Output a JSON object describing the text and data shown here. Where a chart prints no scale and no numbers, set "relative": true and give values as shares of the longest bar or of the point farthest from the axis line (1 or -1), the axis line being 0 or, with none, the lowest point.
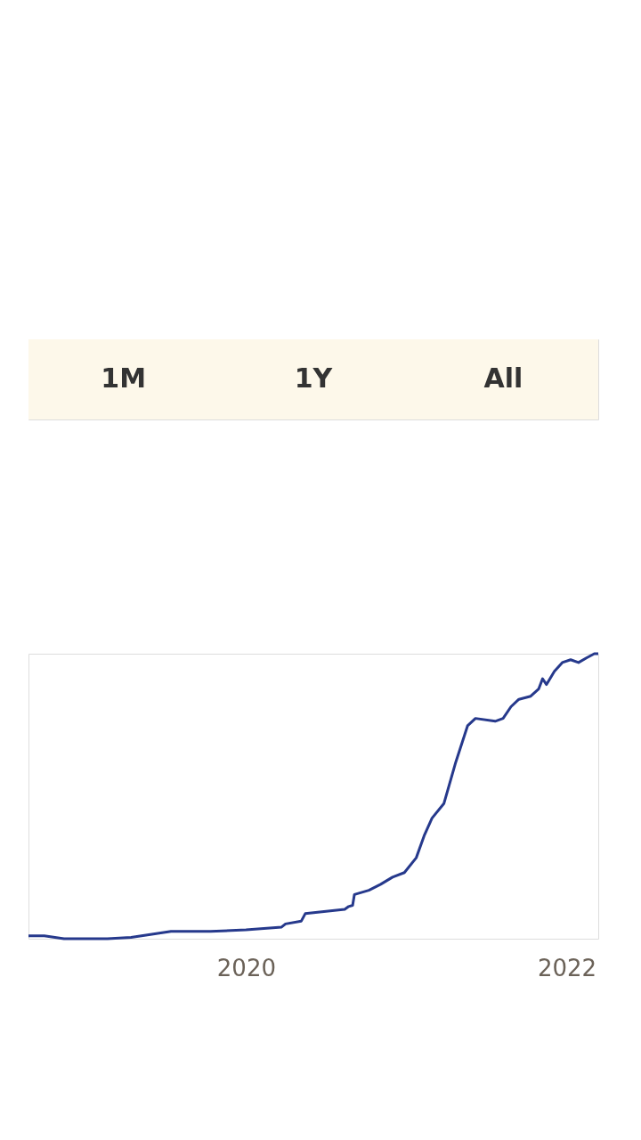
{
  "chart_data": {
    "type": "line",
    "relative": true,
    "annotations": [
      "1M",
      "1Y",
      "All"
    ],
    "x": [
      "2018-08-23",
      "2018-09-28",
      "2018-11-12",
      "2019-02-19",
      "2019-04-14",
      "2019-07-14",
      "2019-10-12",
      "2020-01-01",
      "2020-03-22",
      "2020-03-31",
      "2020-05-06",
      "2020-05-15",
      "2020-08-13",
      "2020-08-22",
      "2020-08-31",
      "2020-09-04",
      "2020-10-07",
      "2020-11-03",
      "2020-11-30",
      "2020-12-27",
      "2021-01-23",
      "2021-02-10",
      "2021-02-28",
      "2021-03-27",
      "2021-04-23",
      "2021-05-20",
      "2021-06-07",
      "2021-07-22",
      "2021-08-09",
      "2021-08-27",
      "2021-09-14",
      "2021-10-11",
      "2021-10-29",
      "2021-11-07",
      "2021-11-16",
      "2021-12-04",
      "2021-12-22",
      "2022-01-10",
      "2022-01-28",
      "2022-02-15",
      "2022-03-05",
      "2022-03-14"
    ],
    "series": [
      {
        "color": "#26398c",
        "values": [
          0.01,
          0.01,
          0,
          0,
          0.005,
          0.026,
          0.026,
          0.031,
          0.041,
          0.052,
          0.062,
          0.088,
          0.103,
          0.113,
          0.117,
          0.155,
          0.17,
          0.191,
          0.216,
          0.232,
          0.284,
          0.361,
          0.423,
          0.474,
          0.619,
          0.747,
          0.773,
          0.763,
          0.773,
          0.814,
          0.84,
          0.851,
          0.876,
          0.912,
          0.892,
          0.938,
          0.969,
          0.979,
          0.969,
          0.985,
          1,
          1
        ]
      }
    ],
    "xlim": [
      "2018-08-23",
      "2022-03-14"
    ],
    "xticks": [
      {
        "value": "2020-01-01",
        "label": "2020"
      },
      {
        "value": "2022-01-01",
        "label": "2022"
      }
    ],
    "grid": false,
    "legend": false,
    "marker": "none",
    "line_style": "solid"
  }
}
